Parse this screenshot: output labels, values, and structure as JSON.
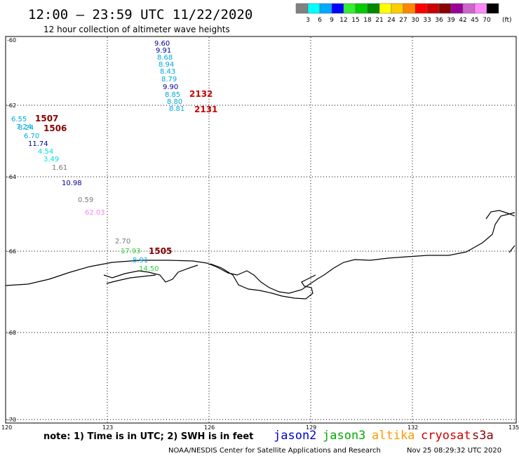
{
  "title": "12:00 – 23:59 UTC 11/22/2020",
  "subtitle": "12 hour collection of altimeter wave heights",
  "legend": {
    "unit": "(ft)",
    "bins": [
      {
        "label": "3",
        "color": "#808080"
      },
      {
        "label": "6",
        "color": "#00ffff"
      },
      {
        "label": "9",
        "color": "#00aaff"
      },
      {
        "label": "12",
        "color": "#0000ff"
      },
      {
        "label": "15",
        "color": "#33ee33"
      },
      {
        "label": "18",
        "color": "#00cc00"
      },
      {
        "label": "21",
        "color": "#008800"
      },
      {
        "label": "24",
        "color": "#ffff00"
      },
      {
        "label": "27",
        "color": "#ffcc00"
      },
      {
        "label": "30",
        "color": "#ff8800"
      },
      {
        "label": "33",
        "color": "#ff0000"
      },
      {
        "label": "36",
        "color": "#cc0000"
      },
      {
        "label": "39",
        "color": "#880000"
      },
      {
        "label": "42",
        "color": "#990099"
      },
      {
        "label": "45",
        "color": "#cc66cc"
      },
      {
        "label": "70",
        "color": "#ff88ff"
      },
      {
        "label": "",
        "color": "#000000"
      }
    ]
  },
  "axes": {
    "lat_labels": [
      "-60",
      "-62",
      "-64",
      "-66",
      "-68",
      "-70"
    ],
    "lon_labels": [
      "120",
      "123",
      "126",
      "129",
      "132",
      "135"
    ]
  },
  "observations": [
    {
      "text": "9.60",
      "color": "#000099"
    },
    {
      "text": "9.91",
      "color": "#000099"
    },
    {
      "text": "8.68",
      "color": "#00aadd"
    },
    {
      "text": "8.94",
      "color": "#00aadd"
    },
    {
      "text": "8.43",
      "color": "#00aadd"
    },
    {
      "text": "8.79",
      "color": "#00aadd"
    },
    {
      "text": "9.90",
      "color": "#000099"
    },
    {
      "text": "8.85",
      "color": "#00aadd"
    },
    {
      "text": "8.80",
      "color": "#00aadd"
    },
    {
      "text": "8.81",
      "color": "#00aadd"
    },
    {
      "text": "6.55",
      "color": "#00aadd"
    },
    {
      "text": "7.24",
      "color": "#00aadd"
    },
    {
      "text": "8.24",
      "color": "#00aadd"
    },
    {
      "text": "6.70",
      "color": "#00aadd"
    },
    {
      "text": "11.74",
      "color": "#000099"
    },
    {
      "text": "4.54",
      "color": "#00dddd"
    },
    {
      "text": "3.49",
      "color": "#00dddd"
    },
    {
      "text": "1.61",
      "color": "#777777"
    },
    {
      "text": "10.98",
      "color": "#000099"
    },
    {
      "text": "0.59",
      "color": "#777777"
    },
    {
      "text": "62.03",
      "color": "#ee88ee"
    },
    {
      "text": "2.70",
      "color": "#777777"
    },
    {
      "text": "17.93",
      "color": "#33cc33"
    },
    {
      "text": "8.91",
      "color": "#00aadd"
    },
    {
      "text": "14.50",
      "color": "#33cc33"
    }
  ],
  "pass_times": [
    {
      "text": "2132",
      "color": "#cc0000"
    },
    {
      "text": "2131",
      "color": "#cc0000"
    },
    {
      "text": "1507",
      "color": "#880000"
    },
    {
      "text": "1506",
      "color": "#880000"
    },
    {
      "text": "1505",
      "color": "#880000"
    }
  ],
  "note": "note: 1) Time is in UTC; 2) SWH is in feet",
  "satellites": [
    {
      "name": "jason2",
      "color": "#0000cc"
    },
    {
      "name": "jason3",
      "color": "#00aa00"
    },
    {
      "name": "altika",
      "color": "#ff9900"
    },
    {
      "name": "cryosat",
      "color": "#cc0000"
    },
    {
      "name": "s3a",
      "color": "#880000"
    }
  ],
  "credit": "NOAA/NESDIS Center for Satellite Applications and Research",
  "timestamp": "Nov 25 08:29:32 UTC 2020"
}
